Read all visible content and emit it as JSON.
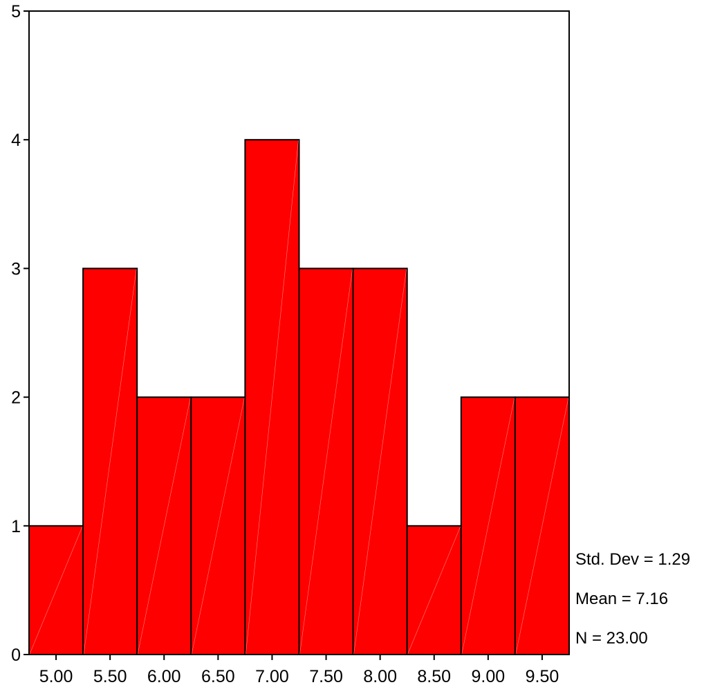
{
  "chart_data": {
    "type": "bar",
    "subtype": "histogram",
    "bins": [
      "5.00",
      "5.50",
      "6.00",
      "6.50",
      "7.00",
      "7.50",
      "8.00",
      "8.50",
      "9.00",
      "9.50"
    ],
    "bin_centers": [
      5.0,
      5.5,
      6.0,
      6.5,
      7.0,
      7.5,
      8.0,
      8.5,
      9.0,
      9.5
    ],
    "bin_width": 0.5,
    "values": [
      1,
      3,
      2,
      2,
      4,
      3,
      3,
      1,
      2,
      2
    ],
    "xlim": [
      4.75,
      9.75
    ],
    "ylim": [
      0,
      5
    ],
    "yticks": [
      "0",
      "1",
      "2",
      "3",
      "4",
      "5"
    ],
    "title": "",
    "xlabel": "",
    "ylabel": "",
    "bar_color": "#ff0000",
    "grid": false,
    "legend": "none",
    "stats": {
      "std_dev": "Std. Dev = 1.29",
      "mean": "Mean = 7.16",
      "n": "N = 23.00"
    }
  }
}
